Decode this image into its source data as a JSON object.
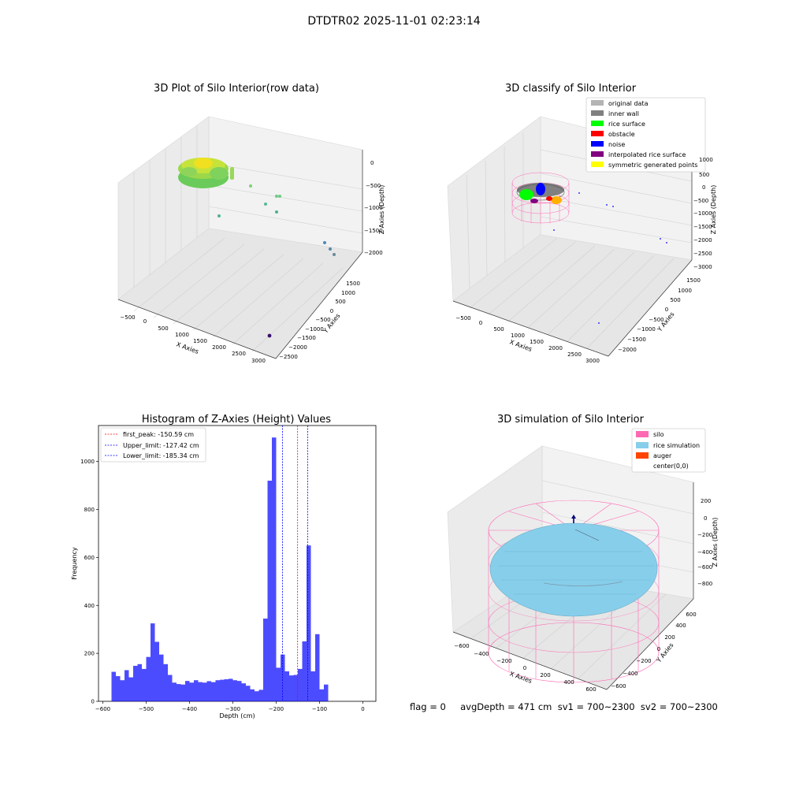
{
  "figure": {
    "title": "DTDTR02 2025-11-01 02:23:14"
  },
  "panels": {
    "raw": {
      "title": "3D Plot of Silo Interior(row data)",
      "xlabel": "X Axies",
      "ylabel": "Y Axies",
      "zlabel": "Z Axies (Depth)",
      "xticks": [
        "−500",
        "0",
        "500",
        "1000",
        "1500",
        "2000",
        "2500",
        "3000"
      ],
      "yticks": [
        "1500",
        "1000",
        "500",
        "0",
        "−500",
        "−1000",
        "−1500",
        "−2000",
        "−2500"
      ],
      "zticks": [
        "0",
        "−500",
        "−1000",
        "−1500",
        "−2000"
      ]
    },
    "classify": {
      "title": "3D classify of Silo Interior",
      "xlabel": "X Axies",
      "ylabel": "Y Axies",
      "zlabel": "Z Axies (Depth)",
      "xticks": [
        "−500",
        "0",
        "500",
        "1000",
        "1500",
        "2000",
        "2500",
        "3000"
      ],
      "yticks": [
        "1500",
        "1000",
        "500",
        "0",
        "−500",
        "−1000",
        "−1500",
        "−2000"
      ],
      "zticks": [
        "1000",
        "500",
        "0",
        "−500",
        "−1000",
        "−1500",
        "−2000",
        "−2500",
        "−3000"
      ],
      "legend": [
        {
          "label": "original data",
          "color": "#b4b4b4"
        },
        {
          "label": "inner wall",
          "color": "#808080"
        },
        {
          "label": "rice surface",
          "color": "#00ff00"
        },
        {
          "label": "obstacle",
          "color": "#ff0000"
        },
        {
          "label": "noise",
          "color": "#0000ff"
        },
        {
          "label": "interpolated rice surface",
          "color": "#800080"
        },
        {
          "label": "symmetric generated points",
          "color": "#ffff00"
        }
      ]
    },
    "simulation": {
      "title": "3D simulation of Silo Interior",
      "xlabel": "X Axies",
      "ylabel": "Y Axies",
      "zlabel": "Z Axies (Depth)",
      "xticks": [
        "−600",
        "−400",
        "−200",
        "0",
        "200",
        "400",
        "600"
      ],
      "yticks": [
        "600",
        "400",
        "200",
        "0",
        "−200",
        "−400",
        "−600"
      ],
      "zticks": [
        "200",
        "0",
        "−200",
        "−400",
        "−600",
        "−800"
      ],
      "legend": [
        {
          "label": "silo",
          "color": "#ff69b4"
        },
        {
          "label": "rice simulation",
          "color": "#87ceeb"
        },
        {
          "label": "auger",
          "color": "#ff4500"
        },
        {
          "label": "center(0,0)",
          "color": "#ffffff"
        }
      ]
    }
  },
  "chart_data": [
    {
      "type": "bar",
      "title": "Histogram of Z-Axies (Height) Values",
      "xlabel": "Depth (cm)",
      "ylabel": "Frequency",
      "xlim": [
        -610,
        30
      ],
      "ylim": [
        0,
        1150
      ],
      "xticks": [
        -600,
        -500,
        -400,
        -300,
        -200,
        -100,
        0
      ],
      "yticks": [
        0,
        200,
        400,
        600,
        800,
        1000
      ],
      "bin_width": 10,
      "bin_start": -580,
      "color": "#0000ff",
      "values": [
        123,
        105,
        88,
        130,
        100,
        148,
        155,
        135,
        185,
        325,
        248,
        195,
        155,
        110,
        78,
        72,
        70,
        85,
        78,
        88,
        80,
        78,
        84,
        80,
        88,
        90,
        92,
        94,
        88,
        85,
        75,
        65,
        50,
        42,
        48,
        345,
        920,
        1100,
        140,
        195,
        125,
        108,
        110,
        135,
        250,
        650,
        125,
        280,
        50,
        70
      ],
      "lines": [
        {
          "label": "first_peak: -150.59 cm",
          "x": -150.59,
          "color": "#ff0000"
        },
        {
          "label": "Upper_limit: -127.42 cm",
          "x": -127.42,
          "color": "#0000ff"
        },
        {
          "label": "Lower_limit: -185.34 cm",
          "x": -185.34,
          "color": "#0000ff"
        }
      ],
      "grid": false,
      "legend_position": "top-left"
    }
  ],
  "footer": {
    "text": "flag = 0     avgDepth = 471 cm  sv1 = 700~2300  sv2 = 700~2300"
  }
}
